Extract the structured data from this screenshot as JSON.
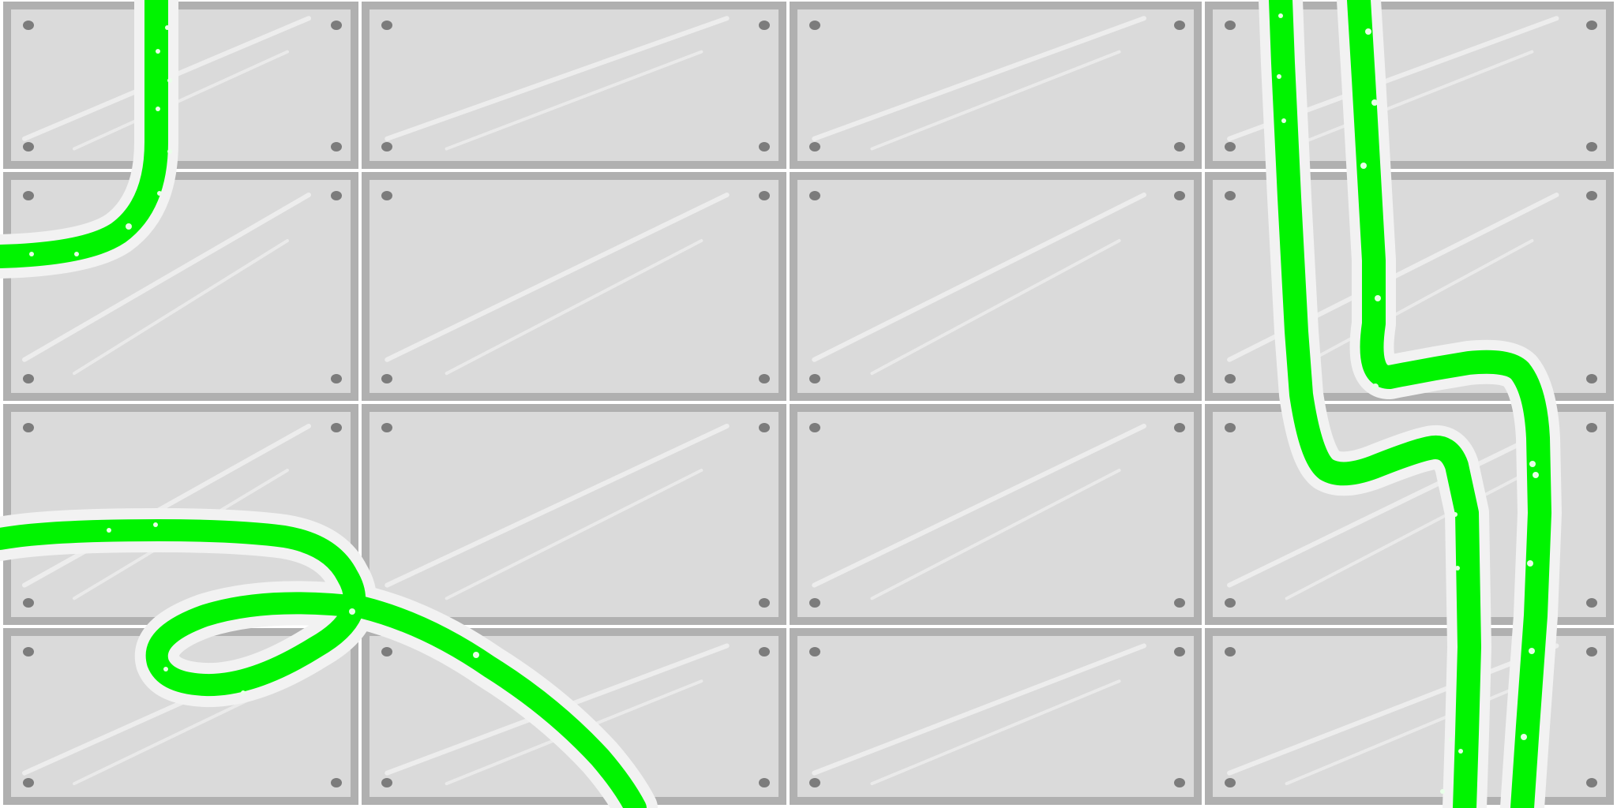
{
  "scene": {
    "kind": "game-background",
    "theme": "laboratory wall with glass panels and glowing tubes",
    "panel_grid": {
      "rows": 4,
      "columns": 4
    },
    "colors": {
      "background": "#ffffff",
      "panel_frame": "#b0b0b0",
      "panel_glass": "#dadada",
      "glass_shine": "#eeeeee",
      "bolt": "#7c7c7c",
      "tube_glow": "#f2f2f2",
      "tube_liquid": "#00f400",
      "bubble": "#e8ffe8"
    },
    "tubes": [
      {
        "id": "tube-top-left",
        "shape": "descends then curves left off screen"
      },
      {
        "id": "tube-bottom-left",
        "shape": "enters from left and loops down to bottom"
      },
      {
        "id": "tube-right-inner",
        "shape": "descends then zigzags down"
      },
      {
        "id": "tube-right-outer",
        "shape": "descends then zigzags down"
      }
    ]
  }
}
